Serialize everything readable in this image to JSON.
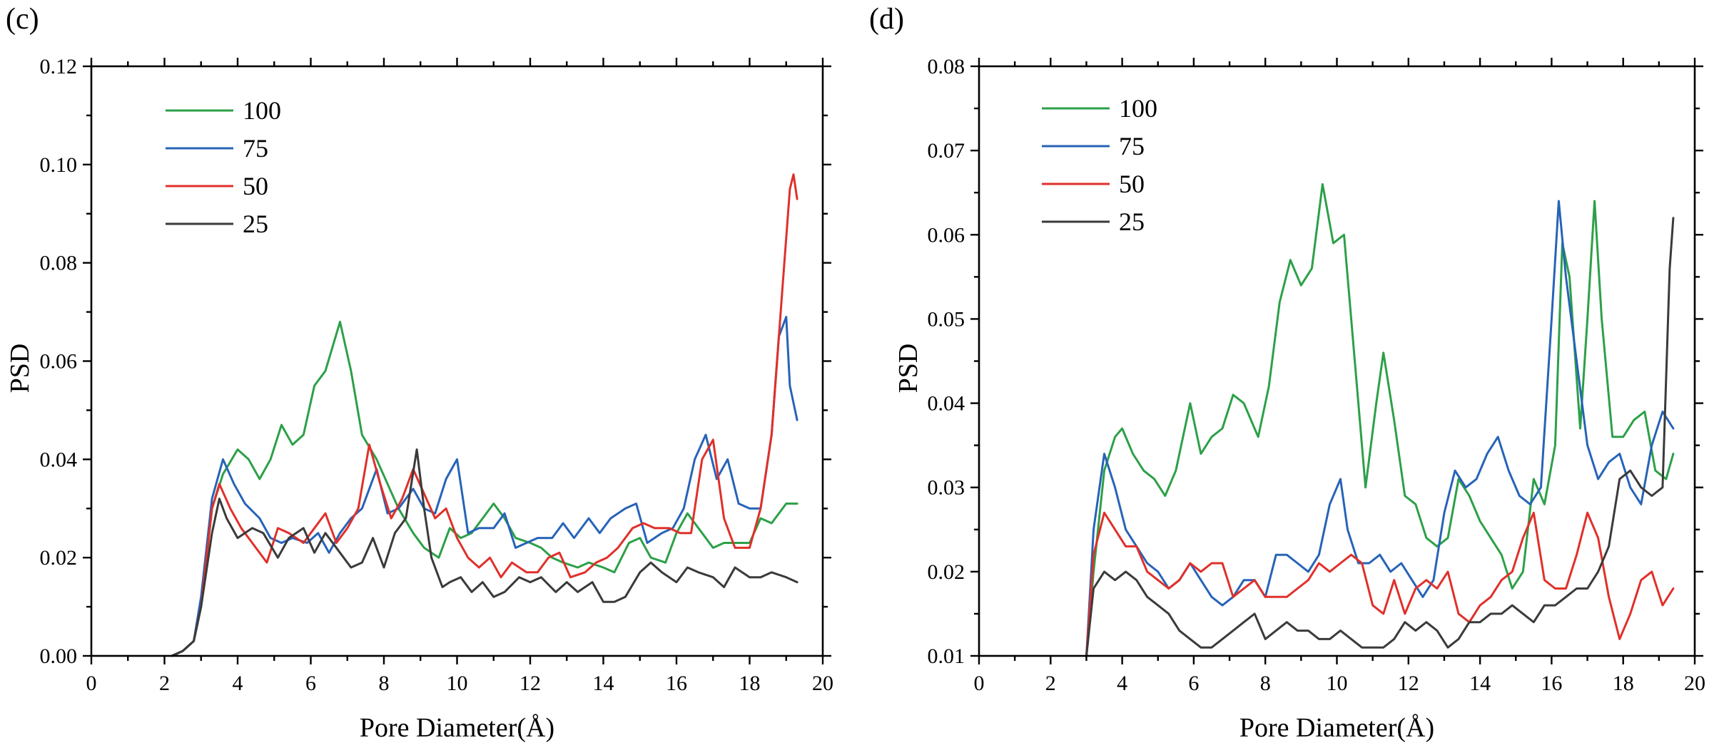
{
  "chart_data": [
    {
      "type": "line",
      "panel_label": "(c)",
      "xlabel": "Pore Diameter(Å)",
      "ylabel": "PSD",
      "xlim": [
        0,
        20
      ],
      "ylim": [
        0,
        0.12
      ],
      "xticks": [
        0,
        2,
        4,
        6,
        8,
        10,
        12,
        14,
        16,
        18,
        20
      ],
      "yticks": [
        0.0,
        0.02,
        0.04,
        0.06,
        0.08,
        0.1,
        0.12
      ],
      "ytick_labels": [
        "0.00",
        "0.02",
        "0.04",
        "0.06",
        "0.08",
        "0.10",
        "0.12"
      ],
      "legend_position": "top-left",
      "grid": false,
      "series": [
        {
          "name": "100",
          "color": "#2ca048",
          "x": [
            2.2,
            2.5,
            2.8,
            3.0,
            3.3,
            3.6,
            4.0,
            4.3,
            4.6,
            4.9,
            5.2,
            5.5,
            5.8,
            6.1,
            6.4,
            6.8,
            7.1,
            7.4,
            7.8,
            8.1,
            8.4,
            8.8,
            9.1,
            9.5,
            9.8,
            10.1,
            10.4,
            10.7,
            11.0,
            11.3,
            11.6,
            12.0,
            12.3,
            12.6,
            12.9,
            13.3,
            13.6,
            14.0,
            14.3,
            14.7,
            15.0,
            15.3,
            15.7,
            16.0,
            16.3,
            16.6,
            17.0,
            17.3,
            17.7,
            18.0,
            18.3,
            18.6,
            19.0,
            19.3
          ],
          "y": [
            0.0,
            0.001,
            0.003,
            0.01,
            0.03,
            0.037,
            0.042,
            0.04,
            0.036,
            0.04,
            0.047,
            0.043,
            0.045,
            0.055,
            0.058,
            0.068,
            0.058,
            0.045,
            0.04,
            0.035,
            0.03,
            0.025,
            0.022,
            0.02,
            0.026,
            0.024,
            0.025,
            0.028,
            0.031,
            0.028,
            0.024,
            0.023,
            0.022,
            0.02,
            0.019,
            0.018,
            0.019,
            0.018,
            0.017,
            0.023,
            0.024,
            0.02,
            0.019,
            0.025,
            0.029,
            0.026,
            0.022,
            0.023,
            0.023,
            0.023,
            0.028,
            0.027,
            0.031,
            0.031
          ]
        },
        {
          "name": "75",
          "color": "#2763b8",
          "x": [
            2.2,
            2.5,
            2.8,
            3.0,
            3.3,
            3.6,
            3.9,
            4.2,
            4.6,
            4.9,
            5.2,
            5.5,
            5.9,
            6.2,
            6.5,
            6.8,
            7.1,
            7.4,
            7.8,
            8.1,
            8.4,
            8.8,
            9.1,
            9.4,
            9.7,
            10.0,
            10.3,
            10.6,
            11.0,
            11.3,
            11.6,
            11.9,
            12.2,
            12.6,
            12.9,
            13.2,
            13.6,
            13.9,
            14.2,
            14.6,
            14.9,
            15.2,
            15.6,
            15.9,
            16.2,
            16.5,
            16.8,
            17.1,
            17.4,
            17.7,
            18.0,
            18.3,
            18.6,
            18.8,
            19.0,
            19.1,
            19.3
          ],
          "y": [
            0.0,
            0.001,
            0.003,
            0.012,
            0.032,
            0.04,
            0.035,
            0.031,
            0.028,
            0.024,
            0.023,
            0.024,
            0.023,
            0.025,
            0.021,
            0.025,
            0.028,
            0.03,
            0.038,
            0.029,
            0.03,
            0.034,
            0.03,
            0.029,
            0.036,
            0.04,
            0.025,
            0.026,
            0.026,
            0.029,
            0.022,
            0.023,
            0.024,
            0.024,
            0.027,
            0.024,
            0.028,
            0.025,
            0.028,
            0.03,
            0.031,
            0.023,
            0.025,
            0.026,
            0.03,
            0.04,
            0.045,
            0.036,
            0.04,
            0.031,
            0.03,
            0.03,
            0.045,
            0.065,
            0.069,
            0.055,
            0.048
          ]
        },
        {
          "name": "50",
          "color": "#e0302a",
          "x": [
            2.2,
            2.5,
            2.8,
            3.0,
            3.3,
            3.5,
            3.8,
            4.1,
            4.4,
            4.8,
            5.1,
            5.4,
            5.8,
            6.1,
            6.4,
            6.7,
            7.0,
            7.3,
            7.6,
            7.9,
            8.2,
            8.5,
            8.8,
            9.1,
            9.4,
            9.7,
            10.0,
            10.3,
            10.6,
            10.9,
            11.2,
            11.5,
            11.9,
            12.2,
            12.5,
            12.8,
            13.1,
            13.5,
            13.8,
            14.1,
            14.4,
            14.8,
            15.1,
            15.4,
            15.8,
            16.1,
            16.4,
            16.7,
            17.0,
            17.3,
            17.6,
            18.0,
            18.3,
            18.6,
            18.9,
            19.1,
            19.2,
            19.3
          ],
          "y": [
            0.0,
            0.001,
            0.003,
            0.01,
            0.03,
            0.035,
            0.03,
            0.026,
            0.023,
            0.019,
            0.026,
            0.025,
            0.023,
            0.026,
            0.029,
            0.023,
            0.026,
            0.03,
            0.043,
            0.035,
            0.028,
            0.032,
            0.038,
            0.033,
            0.028,
            0.03,
            0.024,
            0.02,
            0.018,
            0.02,
            0.016,
            0.019,
            0.017,
            0.017,
            0.02,
            0.021,
            0.016,
            0.017,
            0.019,
            0.02,
            0.022,
            0.026,
            0.027,
            0.026,
            0.026,
            0.025,
            0.025,
            0.04,
            0.044,
            0.028,
            0.022,
            0.022,
            0.03,
            0.045,
            0.075,
            0.095,
            0.098,
            0.093
          ]
        },
        {
          "name": "25",
          "color": "#3a3a3a",
          "x": [
            2.2,
            2.5,
            2.8,
            3.0,
            3.3,
            3.5,
            3.7,
            4.0,
            4.4,
            4.7,
            5.1,
            5.4,
            5.8,
            6.1,
            6.4,
            6.8,
            7.1,
            7.4,
            7.7,
            8.0,
            8.3,
            8.6,
            8.9,
            9.1,
            9.3,
            9.6,
            9.8,
            10.1,
            10.4,
            10.7,
            11.0,
            11.3,
            11.7,
            12.0,
            12.3,
            12.7,
            13.0,
            13.3,
            13.7,
            14.0,
            14.3,
            14.6,
            15.0,
            15.3,
            15.6,
            16.0,
            16.3,
            16.6,
            17.0,
            17.3,
            17.6,
            18.0,
            18.3,
            18.6,
            19.0,
            19.3
          ],
          "y": [
            0.0,
            0.001,
            0.003,
            0.01,
            0.025,
            0.032,
            0.028,
            0.024,
            0.026,
            0.025,
            0.02,
            0.024,
            0.026,
            0.021,
            0.025,
            0.021,
            0.018,
            0.019,
            0.024,
            0.018,
            0.025,
            0.028,
            0.042,
            0.03,
            0.02,
            0.014,
            0.015,
            0.016,
            0.013,
            0.015,
            0.012,
            0.013,
            0.016,
            0.015,
            0.016,
            0.013,
            0.015,
            0.013,
            0.015,
            0.011,
            0.011,
            0.012,
            0.017,
            0.019,
            0.017,
            0.015,
            0.018,
            0.017,
            0.016,
            0.014,
            0.018,
            0.016,
            0.016,
            0.017,
            0.016,
            0.015
          ]
        }
      ]
    },
    {
      "type": "line",
      "panel_label": "(d)",
      "xlabel": "Pore Diameter(Å)",
      "ylabel": "PSD",
      "xlim": [
        0,
        20
      ],
      "ylim": [
        0.01,
        0.08
      ],
      "xticks": [
        0,
        2,
        4,
        6,
        8,
        10,
        12,
        14,
        16,
        18,
        20
      ],
      "yticks": [
        0.01,
        0.02,
        0.03,
        0.04,
        0.05,
        0.06,
        0.07,
        0.08
      ],
      "ytick_labels": [
        "0.01",
        "0.02",
        "0.03",
        "0.04",
        "0.05",
        "0.06",
        "0.07",
        "0.08"
      ],
      "legend_position": "top-left",
      "grid": false,
      "series": [
        {
          "name": "100",
          "color": "#2ca048",
          "x": [
            3.0,
            3.2,
            3.5,
            3.8,
            4.0,
            4.3,
            4.6,
            4.9,
            5.2,
            5.5,
            5.9,
            6.2,
            6.5,
            6.8,
            7.1,
            7.4,
            7.8,
            8.1,
            8.4,
            8.7,
            9.0,
            9.3,
            9.6,
            9.9,
            10.2,
            10.5,
            10.8,
            11.1,
            11.3,
            11.6,
            11.9,
            12.2,
            12.5,
            12.8,
            13.1,
            13.4,
            13.7,
            14.0,
            14.3,
            14.6,
            14.9,
            15.2,
            15.5,
            15.8,
            16.1,
            16.3,
            16.5,
            16.8,
            17.0,
            17.2,
            17.4,
            17.7,
            18.0,
            18.3,
            18.6,
            18.9,
            19.2,
            19.4
          ],
          "y": [
            0.01,
            0.02,
            0.032,
            0.036,
            0.037,
            0.034,
            0.032,
            0.031,
            0.029,
            0.032,
            0.04,
            0.034,
            0.036,
            0.037,
            0.041,
            0.04,
            0.036,
            0.042,
            0.052,
            0.057,
            0.054,
            0.056,
            0.066,
            0.059,
            0.06,
            0.045,
            0.03,
            0.04,
            0.046,
            0.038,
            0.029,
            0.028,
            0.024,
            0.023,
            0.024,
            0.031,
            0.029,
            0.026,
            0.024,
            0.022,
            0.018,
            0.02,
            0.031,
            0.028,
            0.035,
            0.059,
            0.055,
            0.037,
            0.05,
            0.064,
            0.05,
            0.036,
            0.036,
            0.038,
            0.039,
            0.032,
            0.031,
            0.034
          ]
        },
        {
          "name": "75",
          "color": "#2763b8",
          "x": [
            3.0,
            3.2,
            3.5,
            3.8,
            4.1,
            4.4,
            4.7,
            5.0,
            5.3,
            5.6,
            5.9,
            6.2,
            6.5,
            6.8,
            7.1,
            7.4,
            7.7,
            8.0,
            8.3,
            8.6,
            8.9,
            9.2,
            9.5,
            9.8,
            10.1,
            10.3,
            10.6,
            10.9,
            11.2,
            11.5,
            11.8,
            12.1,
            12.4,
            12.7,
            13.0,
            13.3,
            13.6,
            13.9,
            14.2,
            14.5,
            14.8,
            15.1,
            15.4,
            15.7,
            16.0,
            16.2,
            16.4,
            16.7,
            17.0,
            17.3,
            17.6,
            17.9,
            18.2,
            18.5,
            18.8,
            19.1,
            19.4
          ],
          "y": [
            0.01,
            0.025,
            0.034,
            0.03,
            0.025,
            0.023,
            0.021,
            0.02,
            0.018,
            0.019,
            0.021,
            0.019,
            0.017,
            0.016,
            0.017,
            0.019,
            0.019,
            0.017,
            0.022,
            0.022,
            0.021,
            0.02,
            0.022,
            0.028,
            0.031,
            0.025,
            0.021,
            0.021,
            0.022,
            0.02,
            0.021,
            0.019,
            0.017,
            0.019,
            0.027,
            0.032,
            0.03,
            0.031,
            0.034,
            0.036,
            0.032,
            0.029,
            0.028,
            0.03,
            0.05,
            0.064,
            0.055,
            0.045,
            0.035,
            0.031,
            0.033,
            0.034,
            0.03,
            0.028,
            0.035,
            0.039,
            0.037
          ]
        },
        {
          "name": "50",
          "color": "#e0302a",
          "x": [
            3.0,
            3.2,
            3.5,
            3.8,
            4.1,
            4.4,
            4.7,
            5.0,
            5.3,
            5.6,
            5.9,
            6.2,
            6.5,
            6.8,
            7.1,
            7.4,
            7.7,
            8.0,
            8.3,
            8.6,
            8.9,
            9.2,
            9.5,
            9.8,
            10.1,
            10.4,
            10.7,
            11.0,
            11.3,
            11.6,
            11.9,
            12.2,
            12.5,
            12.8,
            13.1,
            13.4,
            13.7,
            14.0,
            14.3,
            14.6,
            14.9,
            15.2,
            15.5,
            15.8,
            16.1,
            16.4,
            16.7,
            17.0,
            17.3,
            17.6,
            17.9,
            18.2,
            18.5,
            18.8,
            19.1,
            19.4
          ],
          "y": [
            0.01,
            0.022,
            0.027,
            0.025,
            0.023,
            0.023,
            0.02,
            0.019,
            0.018,
            0.019,
            0.021,
            0.02,
            0.021,
            0.021,
            0.017,
            0.018,
            0.019,
            0.017,
            0.017,
            0.017,
            0.018,
            0.019,
            0.021,
            0.02,
            0.021,
            0.022,
            0.021,
            0.016,
            0.015,
            0.019,
            0.015,
            0.018,
            0.019,
            0.018,
            0.02,
            0.015,
            0.014,
            0.016,
            0.017,
            0.019,
            0.02,
            0.024,
            0.027,
            0.019,
            0.018,
            0.018,
            0.022,
            0.027,
            0.024,
            0.017,
            0.012,
            0.015,
            0.019,
            0.02,
            0.016,
            0.018
          ]
        },
        {
          "name": "25",
          "color": "#3a3a3a",
          "x": [
            3.0,
            3.2,
            3.5,
            3.8,
            4.1,
            4.4,
            4.7,
            5.0,
            5.3,
            5.6,
            5.9,
            6.2,
            6.5,
            6.8,
            7.1,
            7.4,
            7.7,
            8.0,
            8.3,
            8.6,
            8.9,
            9.2,
            9.5,
            9.8,
            10.1,
            10.4,
            10.7,
            11.0,
            11.3,
            11.6,
            11.9,
            12.2,
            12.5,
            12.8,
            13.1,
            13.4,
            13.7,
            14.0,
            14.3,
            14.6,
            14.9,
            15.2,
            15.5,
            15.8,
            16.1,
            16.4,
            16.7,
            17.0,
            17.3,
            17.6,
            17.9,
            18.2,
            18.5,
            18.8,
            19.1,
            19.3,
            19.4
          ],
          "y": [
            0.01,
            0.018,
            0.02,
            0.019,
            0.02,
            0.019,
            0.017,
            0.016,
            0.015,
            0.013,
            0.012,
            0.011,
            0.011,
            0.012,
            0.013,
            0.014,
            0.015,
            0.012,
            0.013,
            0.014,
            0.013,
            0.013,
            0.012,
            0.012,
            0.013,
            0.012,
            0.011,
            0.011,
            0.011,
            0.012,
            0.014,
            0.013,
            0.014,
            0.013,
            0.011,
            0.012,
            0.014,
            0.014,
            0.015,
            0.015,
            0.016,
            0.015,
            0.014,
            0.016,
            0.016,
            0.017,
            0.018,
            0.018,
            0.02,
            0.023,
            0.031,
            0.032,
            0.03,
            0.029,
            0.03,
            0.056,
            0.062
          ]
        }
      ]
    }
  ]
}
